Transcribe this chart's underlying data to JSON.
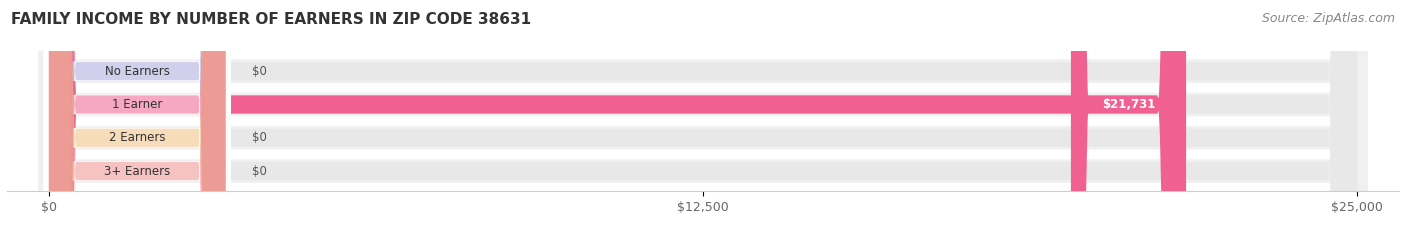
{
  "title": "FAMILY INCOME BY NUMBER OF EARNERS IN ZIP CODE 38631",
  "source": "Source: ZipAtlas.com",
  "categories": [
    "No Earners",
    "1 Earner",
    "2 Earners",
    "3+ Earners"
  ],
  "values": [
    0,
    21731,
    0,
    0
  ],
  "max_value": 25000,
  "label_bg_colors": [
    "#aaaadd",
    "#f06090",
    "#f0c080",
    "#f09090"
  ],
  "bar_fill_colors": [
    "#aaaadd",
    "#f06090",
    "#f0c080",
    "#f09090"
  ],
  "bar_track_color": "#ebebeb",
  "bar_outer_color": "#f5f5f5",
  "xtick_labels": [
    "$0",
    "$12,500",
    "$25,000"
  ],
  "xtick_values": [
    0,
    12500,
    25000
  ],
  "value_labels": [
    "$0",
    "$21,731",
    "$0",
    "$0"
  ],
  "title_fontsize": 11,
  "source_fontsize": 9,
  "label_fontsize": 9,
  "value_fontsize": 9
}
